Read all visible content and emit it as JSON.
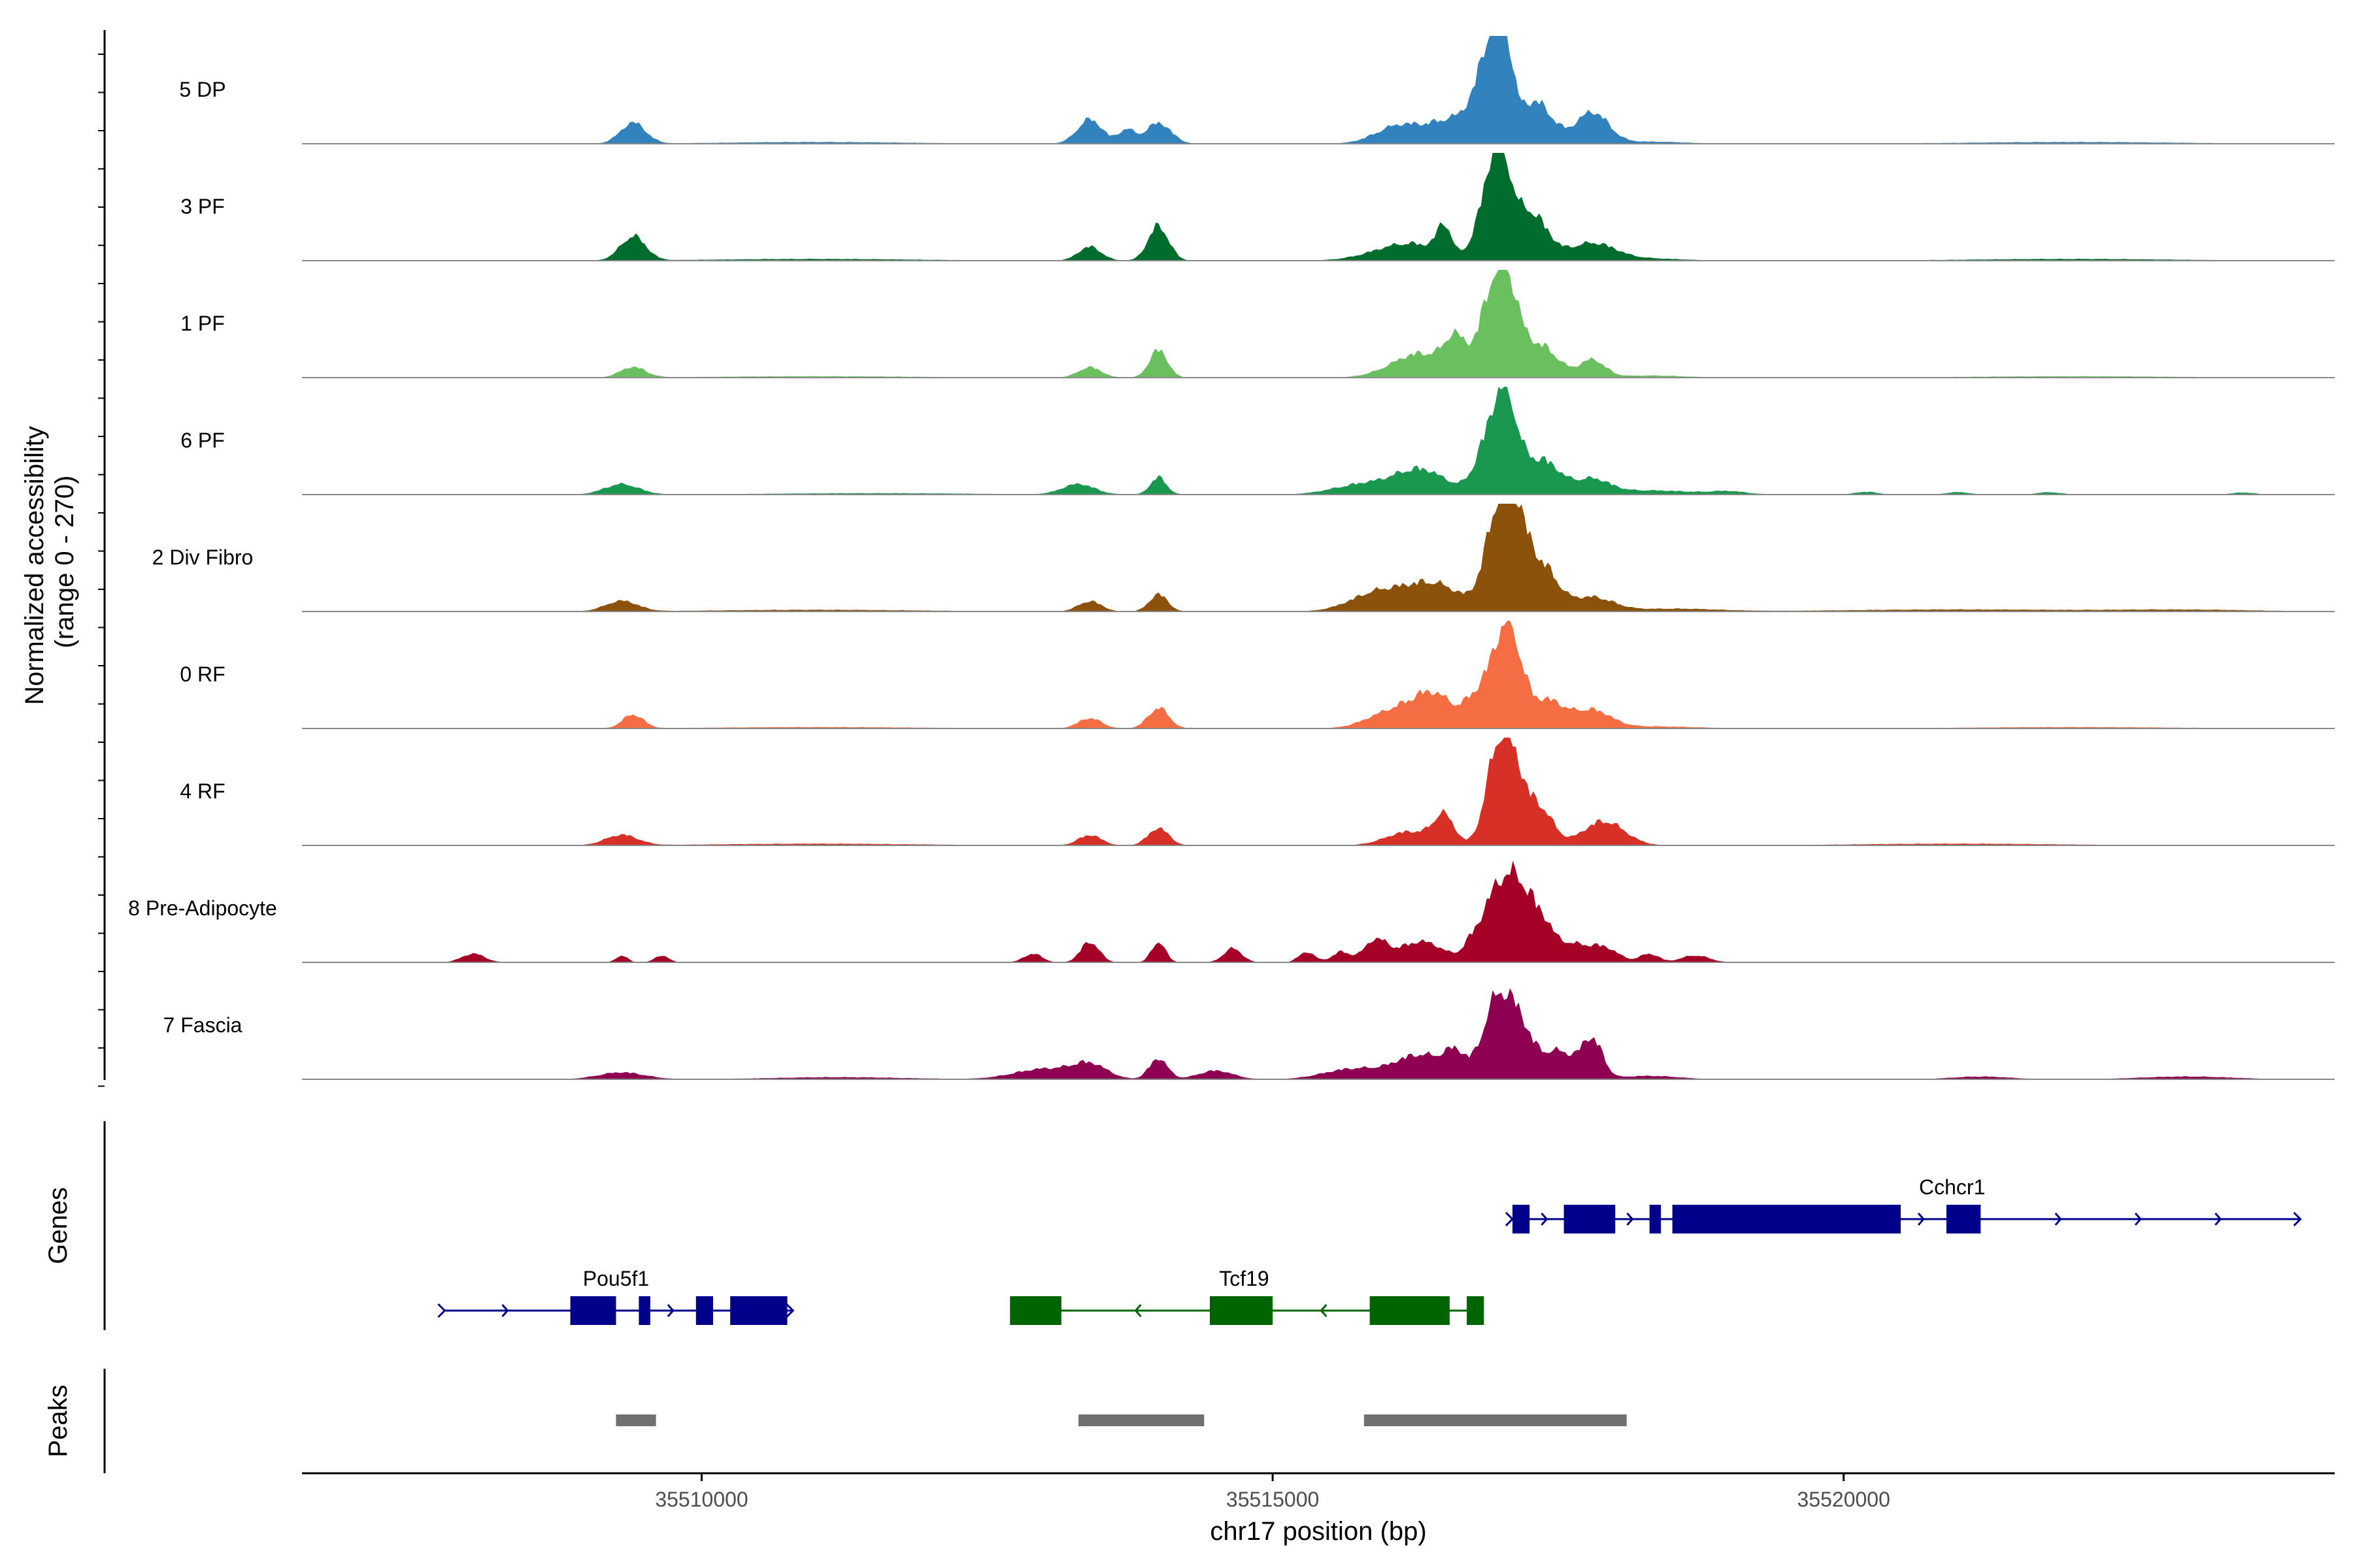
{
  "chart_data": {
    "type": "area",
    "title": "",
    "ylabel_line1": "Normalized accessibility",
    "ylabel_line2": "(range 0 - 270)",
    "xlabel": "chr17 position (bp)",
    "xlim": [
      35506500,
      35524300
    ],
    "ylim": [
      0,
      270
    ],
    "x_ticks": [
      35510000,
      35515000,
      35520000
    ],
    "x_tick_labels": [
      "35510000",
      "35515000",
      "35520000"
    ],
    "series": [
      {
        "name": "5 DP",
        "color": "#3182BD",
        "peaks": [
          [
            35509400,
            110,
            60
          ],
          [
            35513400,
            110,
            70
          ],
          [
            35513720,
            70,
            40
          ],
          [
            35514000,
            110,
            60
          ],
          [
            35516100,
            200,
            50
          ],
          [
            35516600,
            220,
            70
          ],
          [
            35516900,
            120,
            210
          ],
          [
            35517000,
            80,
            260
          ],
          [
            35517300,
            150,
            120
          ],
          [
            35517800,
            140,
            90
          ],
          [
            35518300,
            300,
            6
          ],
          [
            35511000,
            800,
            5
          ],
          [
            35522000,
            900,
            5
          ]
        ]
      },
      {
        "name": "3 PF",
        "color": "#006D2C",
        "peaks": [
          [
            35509400,
            110,
            70
          ],
          [
            35513400,
            100,
            40
          ],
          [
            35514000,
            90,
            100
          ],
          [
            35516200,
            300,
            50
          ],
          [
            35516500,
            60,
            80
          ],
          [
            35516880,
            100,
            150
          ],
          [
            35517000,
            90,
            240
          ],
          [
            35517250,
            150,
            140
          ],
          [
            35517800,
            200,
            50
          ],
          [
            35518300,
            300,
            6
          ],
          [
            35511000,
            900,
            5
          ],
          [
            35522000,
            900,
            5
          ]
        ]
      },
      {
        "name": "1 PF",
        "color": "#6ABF5E",
        "peaks": [
          [
            35509400,
            110,
            30
          ],
          [
            35513400,
            100,
            30
          ],
          [
            35514000,
            80,
            80
          ],
          [
            35516300,
            250,
            70
          ],
          [
            35516600,
            90,
            90
          ],
          [
            35516900,
            110,
            170
          ],
          [
            35517050,
            110,
            240
          ],
          [
            35517350,
            150,
            90
          ],
          [
            35517800,
            110,
            50
          ],
          [
            35518300,
            300,
            6
          ],
          [
            35511000,
            900,
            4
          ],
          [
            35522000,
            900,
            4
          ]
        ]
      },
      {
        "name": "6 PF",
        "color": "#1A9850",
        "peaks": [
          [
            35509300,
            150,
            30
          ],
          [
            35513300,
            140,
            30
          ],
          [
            35514000,
            70,
            50
          ],
          [
            35515800,
            260,
            30
          ],
          [
            35516300,
            220,
            70
          ],
          [
            35516900,
            120,
            150
          ],
          [
            35517050,
            100,
            220
          ],
          [
            35517350,
            160,
            100
          ],
          [
            35517800,
            150,
            40
          ],
          [
            35518300,
            400,
            12
          ],
          [
            35519000,
            150,
            8
          ],
          [
            35520200,
            100,
            8
          ],
          [
            35521000,
            100,
            7
          ],
          [
            35521800,
            100,
            7
          ],
          [
            35523500,
            100,
            6
          ],
          [
            35511500,
            900,
            4
          ]
        ]
      },
      {
        "name": "2 Div Fibro",
        "color": "#8C510A",
        "peaks": [
          [
            35509300,
            140,
            30
          ],
          [
            35513400,
            100,
            30
          ],
          [
            35514000,
            80,
            50
          ],
          [
            35515900,
            230,
            50
          ],
          [
            35516400,
            250,
            80
          ],
          [
            35516950,
            110,
            200
          ],
          [
            35517100,
            110,
            270
          ],
          [
            35517350,
            140,
            130
          ],
          [
            35517800,
            180,
            40
          ],
          [
            35518500,
            400,
            8
          ],
          [
            35511000,
            900,
            5
          ],
          [
            35521000,
            1000,
            6
          ],
          [
            35523000,
            600,
            5
          ]
        ]
      },
      {
        "name": "0 RF",
        "color": "#F46D43",
        "peaks": [
          [
            35509400,
            90,
            40
          ],
          [
            35513400,
            100,
            30
          ],
          [
            35514000,
            90,
            60
          ],
          [
            35516000,
            200,
            40
          ],
          [
            35516400,
            200,
            100
          ],
          [
            35516750,
            80,
            50
          ],
          [
            35516950,
            110,
            170
          ],
          [
            35517100,
            100,
            210
          ],
          [
            35517400,
            150,
            80
          ],
          [
            35517800,
            160,
            50
          ],
          [
            35518300,
            400,
            6
          ],
          [
            35511000,
            900,
            4
          ],
          [
            35522000,
            900,
            4
          ]
        ]
      },
      {
        "name": "4 RF",
        "color": "#D73027",
        "peaks": [
          [
            35509300,
            140,
            30
          ],
          [
            35513400,
            100,
            30
          ],
          [
            35514000,
            90,
            50
          ],
          [
            35516200,
            200,
            40
          ],
          [
            35516500,
            90,
            80
          ],
          [
            35516950,
            100,
            200
          ],
          [
            35517100,
            110,
            220
          ],
          [
            35517350,
            110,
            100
          ],
          [
            35517900,
            180,
            70
          ],
          [
            35511000,
            900,
            5
          ],
          [
            35521000,
            900,
            5
          ]
        ]
      },
      {
        "name": "8 Pre-Adipocyte",
        "color": "#A50026",
        "peaks": [
          [
            35508000,
            100,
            25
          ],
          [
            35509300,
            50,
            20
          ],
          [
            35509650,
            60,
            20
          ],
          [
            35512900,
            80,
            25
          ],
          [
            35513400,
            80,
            60
          ],
          [
            35514000,
            60,
            60
          ],
          [
            35514650,
            80,
            40
          ],
          [
            35515300,
            70,
            30
          ],
          [
            35515600,
            80,
            30
          ],
          [
            35515900,
            100,
            60
          ],
          [
            35516300,
            200,
            60
          ],
          [
            35516750,
            80,
            50
          ],
          [
            35516950,
            110,
            180
          ],
          [
            35517150,
            110,
            200
          ],
          [
            35517350,
            100,
            100
          ],
          [
            35517600,
            150,
            50
          ],
          [
            35517900,
            130,
            40
          ],
          [
            35518300,
            80,
            25
          ],
          [
            35518700,
            120,
            20
          ]
        ]
      },
      {
        "name": "7 Fascia",
        "color": "#8E0152",
        "peaks": [
          [
            35509300,
            200,
            20
          ],
          [
            35513000,
            260,
            30
          ],
          [
            35513400,
            150,
            40
          ],
          [
            35514000,
            80,
            60
          ],
          [
            35514500,
            150,
            25
          ],
          [
            35515700,
            250,
            30
          ],
          [
            35516300,
            220,
            70
          ],
          [
            35516600,
            90,
            60
          ],
          [
            35516950,
            120,
            200
          ],
          [
            35517150,
            120,
            150
          ],
          [
            35517500,
            150,
            80
          ],
          [
            35517800,
            90,
            110
          ],
          [
            35518300,
            250,
            10
          ],
          [
            35521200,
            250,
            8
          ],
          [
            35523000,
            400,
            8
          ],
          [
            35511200,
            600,
            6
          ]
        ]
      }
    ],
    "genes_label": "Genes",
    "genes": [
      {
        "name": "Cchcr1",
        "color": "#00008B",
        "strand": "+",
        "row": 0,
        "start": 35517100,
        "end": 35524000,
        "exons": [
          [
            35517100,
            35517250
          ],
          [
            35517550,
            35518000
          ],
          [
            35518300,
            35518400
          ],
          [
            35518500,
            35520500
          ],
          [
            35520900,
            35521200
          ]
        ]
      },
      {
        "name": "Pou5f1",
        "color": "#00008B",
        "strand": "+",
        "row": 1,
        "start": 35507750,
        "end": 35510800,
        "exons": [
          [
            35508850,
            35509250
          ],
          [
            35509450,
            35509550
          ],
          [
            35509950,
            35510100
          ],
          [
            35510250,
            35510750
          ]
        ]
      },
      {
        "name": "Tcf19",
        "color": "#006400",
        "strand": "-",
        "row": 1,
        "start": 35512700,
        "end": 35516850,
        "exons": [
          [
            35512700,
            35513150
          ],
          [
            35514450,
            35515000
          ],
          [
            35515850,
            35516550
          ],
          [
            35516700,
            35516850
          ]
        ]
      }
    ],
    "peaks_label": "Peaks",
    "peak_regions": [
      [
        35509250,
        35509600
      ],
      [
        35513300,
        35514400
      ],
      [
        35515800,
        35518100
      ]
    ]
  }
}
